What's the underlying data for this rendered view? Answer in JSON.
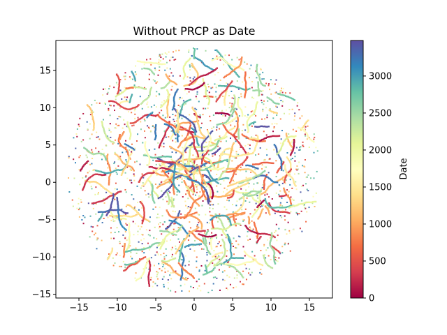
{
  "chart_data": {
    "type": "scatter",
    "title": "Without PRCP as Date",
    "xlabel": "",
    "ylabel": "",
    "xlim": [
      -18,
      18
    ],
    "ylim": [
      -15.5,
      19
    ],
    "xticks": [
      -15,
      -10,
      -5,
      0,
      5,
      10,
      15
    ],
    "yticks": [
      -15,
      -10,
      -5,
      0,
      5,
      10,
      15
    ],
    "grid": false,
    "colorbar": {
      "label": "Date",
      "range": [
        0,
        3480
      ],
      "ticks": [
        0,
        500,
        1000,
        1500,
        2000,
        2500,
        3000
      ],
      "colormap": "Spectral",
      "stops": [
        "#9e0142",
        "#d53e4f",
        "#f46d43",
        "#fdae61",
        "#fee08b",
        "#ffffbf",
        "#e6f598",
        "#abdda4",
        "#66c2a5",
        "#3288bd",
        "#5e4fa2"
      ]
    },
    "point_cloud": {
      "shape": "disk",
      "center": [
        0,
        1.5
      ],
      "radius": 16.5,
      "color_by": "Date"
    }
  }
}
